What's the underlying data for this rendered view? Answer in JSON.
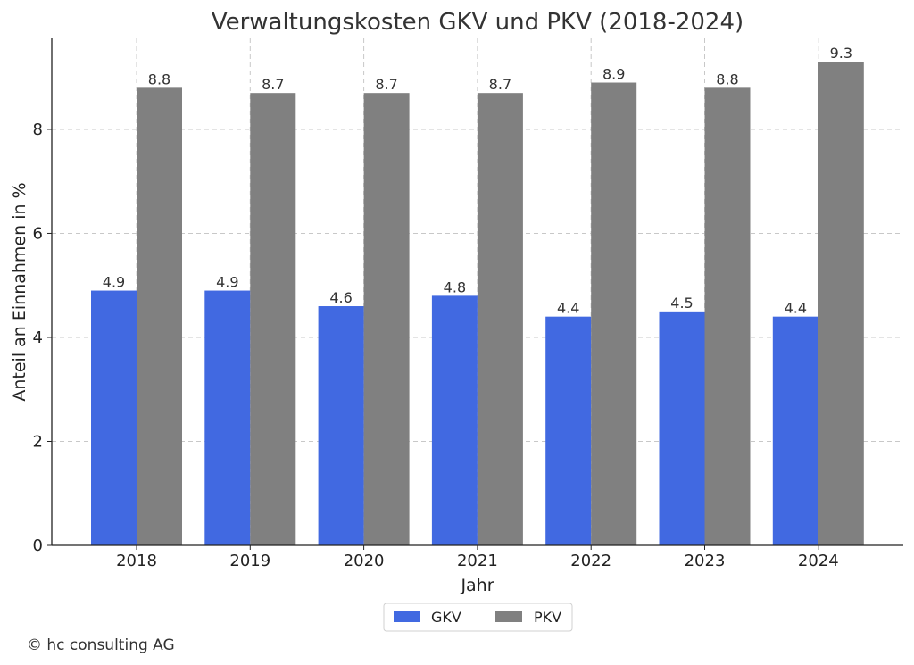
{
  "chart_data": {
    "type": "bar",
    "title": "Verwaltungskosten GKV und PKV (2018-2024)",
    "xlabel": "Jahr",
    "ylabel": "Anteil an Einnahmen in %",
    "categories": [
      "2018",
      "2019",
      "2020",
      "2021",
      "2022",
      "2023",
      "2024"
    ],
    "series": [
      {
        "name": "GKV",
        "color": "#4169E1",
        "values": [
          4.9,
          4.9,
          4.6,
          4.8,
          4.4,
          4.5,
          4.4
        ]
      },
      {
        "name": "PKV",
        "color": "#808080",
        "values": [
          8.8,
          8.7,
          8.7,
          8.7,
          8.9,
          8.8,
          9.3
        ]
      }
    ],
    "yticks": [
      0,
      2,
      4,
      6,
      8
    ],
    "ylim": [
      0,
      9.75
    ],
    "grid": true,
    "legend_position": "bottom-center"
  },
  "footer": {
    "copyright": "© hc consulting AG"
  }
}
